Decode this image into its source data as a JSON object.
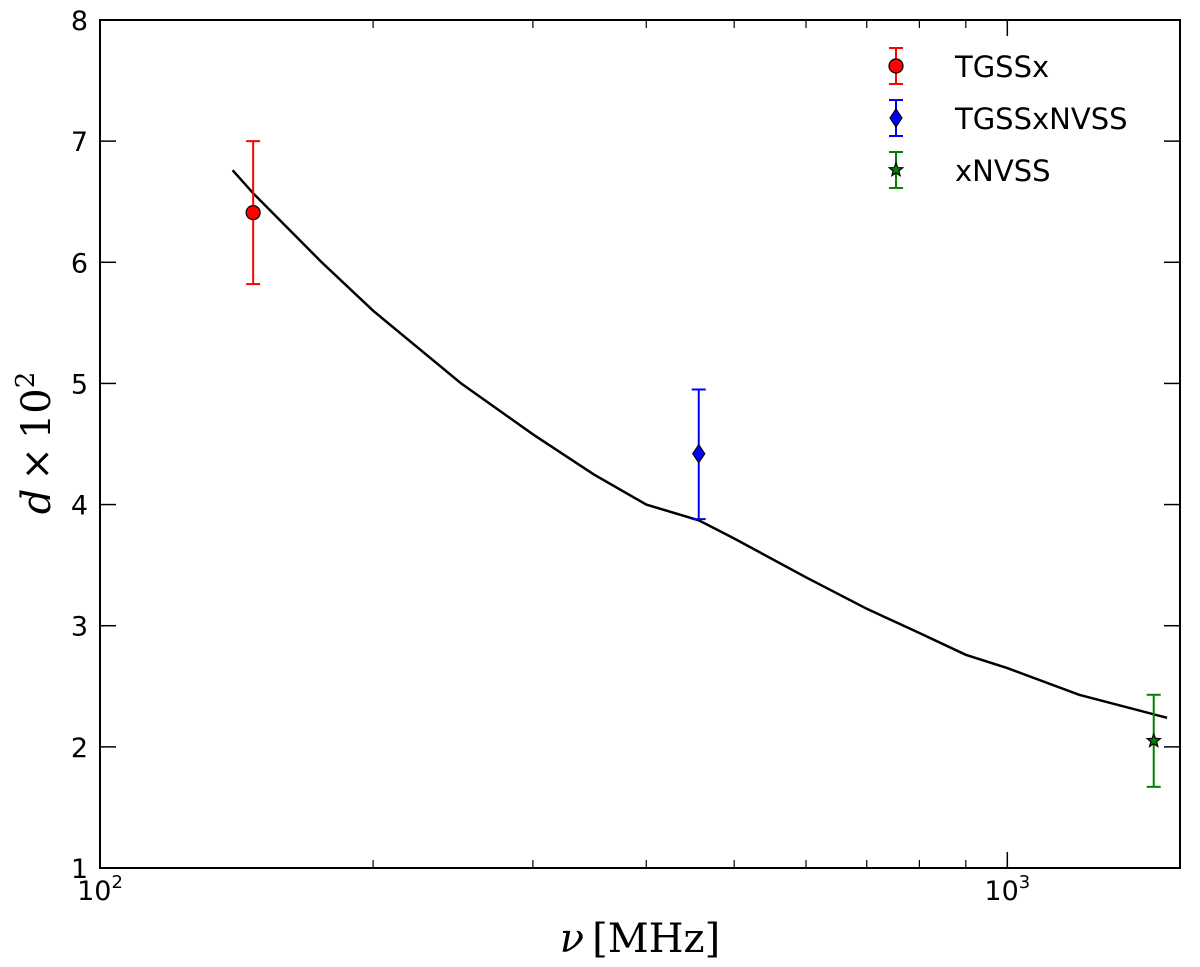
{
  "chart_data": {
    "type": "scatter",
    "x_scale": "log",
    "xlim": [
      100,
      1550
    ],
    "ylim": [
      1,
      8
    ],
    "xlabel": {
      "symbol": "ν",
      "unit": "[MHz]"
    },
    "ylabel": {
      "symbol": "d",
      "times": "×",
      "base": "10",
      "exp": "2"
    },
    "x_ticks": [
      {
        "value": 100,
        "base": "10",
        "exp": "2"
      },
      {
        "value": 1000,
        "base": "10",
        "exp": "3"
      }
    ],
    "x_minor_ticks": [
      200,
      300,
      400,
      500,
      600,
      700,
      800,
      900
    ],
    "y_ticks": [
      1,
      2,
      3,
      4,
      5,
      6,
      7,
      8
    ],
    "series": [
      {
        "name": "TGSSx",
        "marker": "circle",
        "color": "#ff0000",
        "ecolor": "#ff0000",
        "x": 147.5,
        "y": 6.41,
        "yerr": [
          5.82,
          7.0
        ]
      },
      {
        "name": "TGSSxNVSS",
        "marker": "diamond",
        "color": "#0000ff",
        "ecolor": "#0000ff",
        "x": 457,
        "y": 4.42,
        "yerr": [
          3.88,
          4.95
        ]
      },
      {
        "name": "xNVSS",
        "marker": "star",
        "color": "#008000",
        "ecolor": "#008000",
        "x": 1450,
        "y": 2.05,
        "yerr": [
          1.67,
          2.43
        ]
      }
    ],
    "curve": {
      "color": "#000000",
      "x": [
        140,
        147.5,
        175,
        200,
        250,
        300,
        350,
        400,
        457,
        500,
        600,
        700,
        800,
        900,
        1000,
        1200,
        1500
      ],
      "y": [
        6.76,
        6.57,
        6.01,
        5.6,
        5.0,
        4.58,
        4.25,
        4.0,
        3.87,
        3.72,
        3.4,
        3.14,
        2.94,
        2.76,
        2.65,
        2.43,
        2.24
      ]
    },
    "legend": {
      "position": "top-right"
    }
  }
}
